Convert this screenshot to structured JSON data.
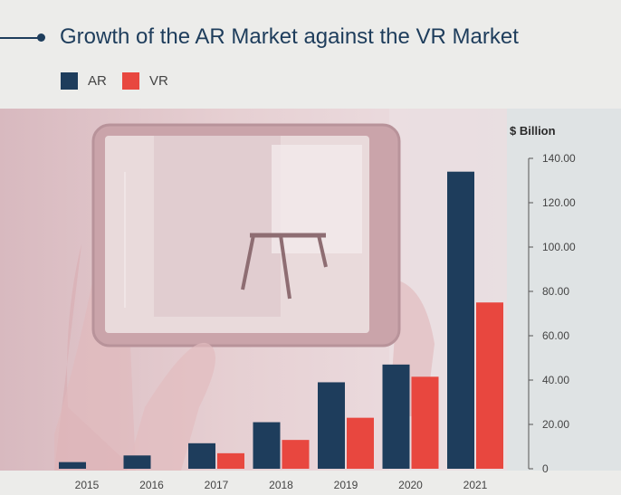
{
  "header": {
    "title": "Growth of the AR Market against the VR Market"
  },
  "legend": [
    {
      "label": "AR",
      "color": "#1e3d5c"
    },
    {
      "label": "VR",
      "color": "#e8473f"
    }
  ],
  "colors": {
    "ar": "#1e3d5c",
    "vr": "#e8473f",
    "background": "#e9e9e8"
  },
  "chart_data": {
    "type": "bar",
    "title": "Growth of the AR Market against the VR Market",
    "ylabel": "$ Billion",
    "xlabel": "",
    "categories": [
      "2015",
      "2016",
      "2017",
      "2018",
      "2019",
      "2020",
      "2021"
    ],
    "series": [
      {
        "name": "AR",
        "color": "#1e3d5c",
        "values": [
          3,
          6,
          11.5,
          21,
          39,
          47,
          134
        ]
      },
      {
        "name": "VR",
        "color": "#e8473f",
        "values": [
          null,
          null,
          7,
          13,
          23,
          41.5,
          75
        ]
      }
    ],
    "ylim": [
      0,
      140
    ],
    "yticks": [
      "0",
      "20.00",
      "40.00",
      "60.00",
      "80.00",
      "100.00",
      "120.00",
      "140.00"
    ],
    "ytick_values": [
      0,
      20,
      40,
      60,
      80,
      100,
      120,
      140
    ],
    "grid": false,
    "y_axis_side": "right",
    "legend_position": "top-left",
    "background_image": "hands-holding-tablet-ar-photo"
  }
}
